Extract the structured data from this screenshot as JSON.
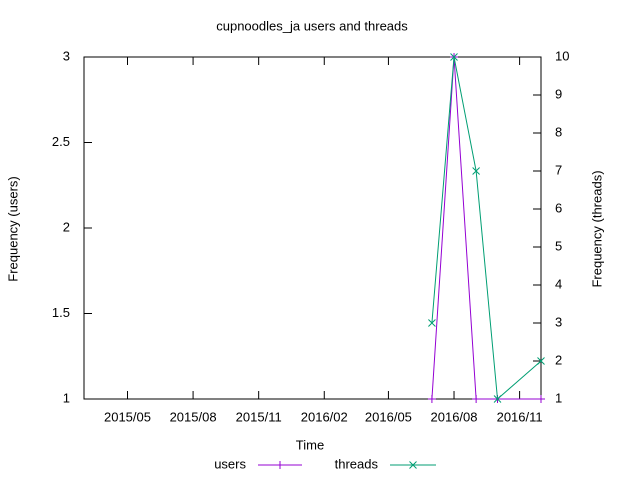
{
  "chart_data": {
    "type": "line",
    "title": "cupnoodles_ja users and threads",
    "x_label": "Time",
    "y_label": "Frequency (users)",
    "y2_label": "Frequency (threads)",
    "x": [
      "2016/07",
      "2016/08",
      "2016/09",
      "2016/10",
      "2016/12"
    ],
    "xlim": [
      "2015/03",
      "2016/12"
    ],
    "xticks": [
      "2015/05",
      "2015/08",
      "2015/11",
      "2016/02",
      "2016/05",
      "2016/08",
      "2016/11"
    ],
    "ylim": [
      1,
      3
    ],
    "yticks": [
      1,
      1.5,
      2,
      2.5,
      3
    ],
    "y2lim": [
      1,
      10
    ],
    "y2ticks": [
      1,
      2,
      3,
      4,
      5,
      6,
      7,
      8,
      9,
      10
    ],
    "legend": "bottom",
    "series": [
      {
        "name": "users",
        "color": "#9400d3",
        "marker": "plus",
        "values": [
          1,
          3,
          1,
          1,
          1
        ]
      },
      {
        "name": "threads",
        "color": "#009e73",
        "marker": "cross",
        "axis": "y2",
        "values": [
          3,
          10,
          7,
          1,
          2
        ]
      }
    ]
  }
}
